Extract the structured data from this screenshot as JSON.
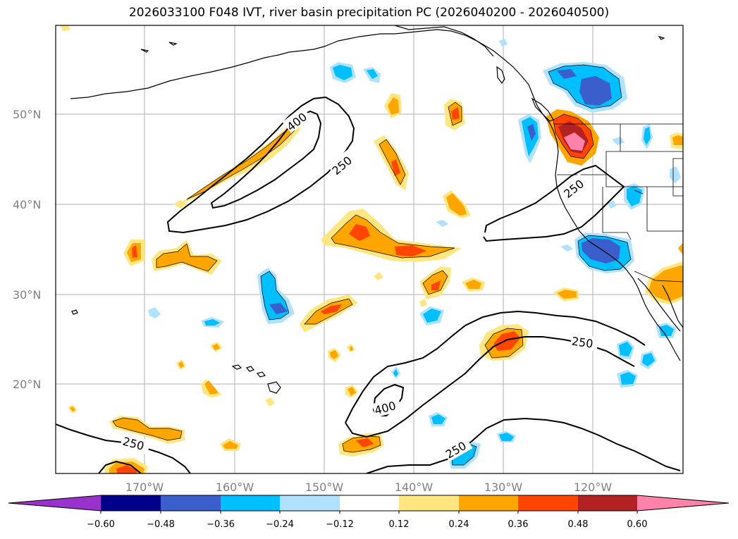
{
  "title": "2026033100 F048 IVT, river basin precipitation PC (2026040200 - 2026040500)",
  "lat_labels": [
    "50°N",
    "40°N",
    "30°N",
    "20°N"
  ],
  "lon_labels": [
    "170°W",
    "160°W",
    "150°W",
    "140°W",
    "130°W",
    "120°W"
  ],
  "contour_labels": {
    "c400_north": "400",
    "c250_north": "250",
    "c250_coast": "250",
    "c250_south": "250",
    "c400_south": "400",
    "c250_west": "250",
    "c250_southeast": "250"
  },
  "colorbar": {
    "ticks": [
      "−0.60",
      "−0.48",
      "−0.36",
      "−0.24",
      "−0.12",
      "0.12",
      "0.24",
      "0.36",
      "0.48",
      "0.60"
    ],
    "colors": {
      "under": "#9932cc",
      "b1": "#00008b",
      "b2": "#3a5fcd",
      "b3": "#00bfff",
      "b4": "#b0e2ff",
      "neutral": "#ffffff",
      "p1": "#ffe680",
      "p2": "#ffa500",
      "p3": "#ff4500",
      "p4": "#b22222",
      "over": "#ff82ab"
    }
  }
}
